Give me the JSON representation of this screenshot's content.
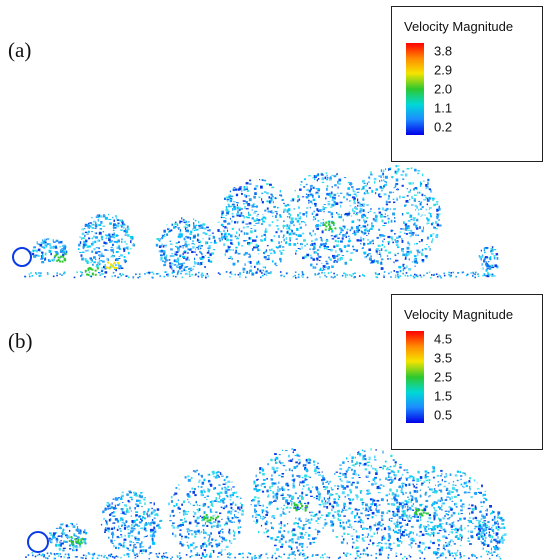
{
  "panels": [
    {
      "label": "(a)",
      "legend": {
        "title": "Velocity Magnitude",
        "ticks": [
          "3.8",
          "2.9",
          "2.0",
          "1.1",
          "0.2"
        ]
      }
    },
    {
      "label": "(b)",
      "legend": {
        "title": "Velocity Magnitude",
        "ticks": [
          "4.5",
          "3.5",
          "2.5",
          "1.5",
          "0.5"
        ]
      }
    }
  ],
  "colors": {
    "colormap": [
      "#ff0000",
      "#ff8c00",
      "#f5e400",
      "#2ec82e",
      "#00d8d8",
      "#1c8cff",
      "#0000e6"
    ],
    "particle_palette": [
      "#00c8ff",
      "#1ea0ff",
      "#0a6ef0",
      "#0a3ce6",
      "#30e0e0",
      "#5ad7ff",
      "#2aa0e8"
    ]
  }
}
